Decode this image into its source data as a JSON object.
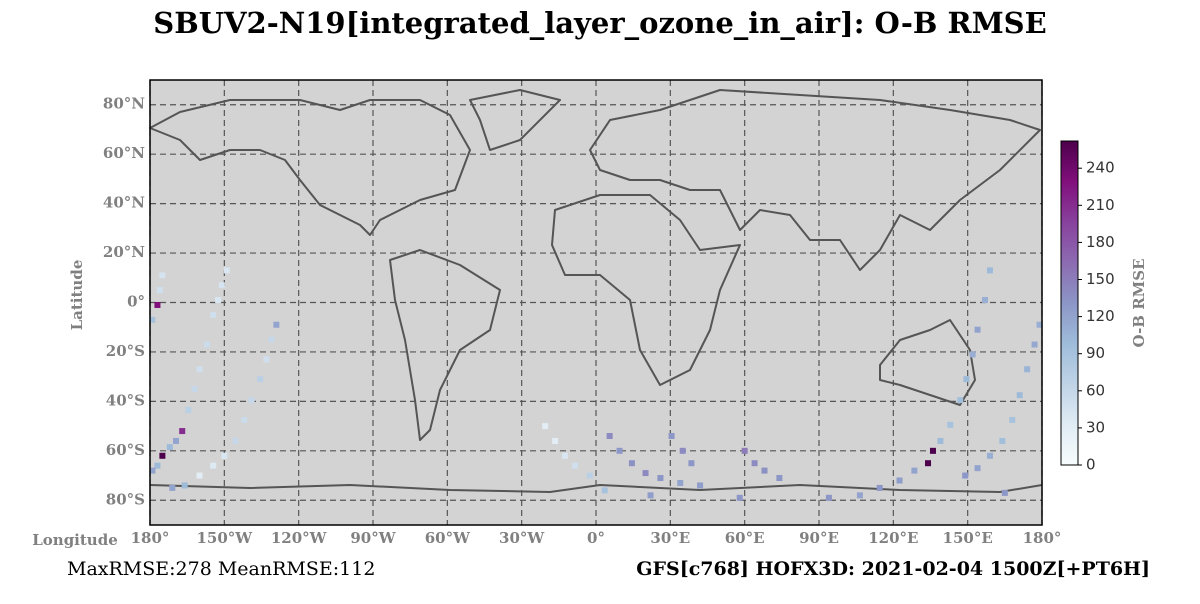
{
  "chart_data": {
    "type": "map",
    "title": "SBUV2-N19[integrated_layer_ozone_in_air]: O-B RMSE",
    "x_label": "Longitude",
    "y_label": "Latitude",
    "colorbar_label": "O-B RMSE",
    "footer_left": "MaxRMSE:278 MeanRMSE:112",
    "footer_right": "GFS[c768] HOFX3D: 2021-02-04 1500Z[+PT6H]",
    "grid": true,
    "colormap": "BuPu",
    "xlim": [
      -180,
      180
    ],
    "ylim": [
      -90,
      90
    ],
    "clim": [
      0,
      262
    ],
    "xticks": [
      {
        "value": -180,
        "label": "180°"
      },
      {
        "value": -150,
        "label": "150°W"
      },
      {
        "value": -120,
        "label": "120°W"
      },
      {
        "value": -90,
        "label": "90°W"
      },
      {
        "value": -60,
        "label": "60°W"
      },
      {
        "value": -30,
        "label": "30°W"
      },
      {
        "value": 0,
        "label": "0°"
      },
      {
        "value": 30,
        "label": "30°E"
      },
      {
        "value": 60,
        "label": "60°E"
      },
      {
        "value": 90,
        "label": "90°E"
      },
      {
        "value": 120,
        "label": "120°E"
      },
      {
        "value": 150,
        "label": "150°E"
      },
      {
        "value": 180,
        "label": "180°"
      }
    ],
    "yticks": [
      {
        "value": 80,
        "label": "80°N"
      },
      {
        "value": 60,
        "label": "60°N"
      },
      {
        "value": 40,
        "label": "40°N"
      },
      {
        "value": 20,
        "label": "20°N"
      },
      {
        "value": 0,
        "label": "0°"
      },
      {
        "value": -20,
        "label": "20°S"
      },
      {
        "value": -40,
        "label": "40°S"
      },
      {
        "value": -60,
        "label": "60°S"
      },
      {
        "value": -80,
        "label": "80°S"
      }
    ],
    "cticks": [
      0,
      30,
      60,
      90,
      120,
      150,
      180,
      210,
      240
    ],
    "x": [
      -149,
      -151,
      -152.5,
      -154.5,
      -157,
      -160,
      -162,
      -164.5,
      -167,
      -169.5,
      -172,
      -175,
      -177,
      -179,
      -175,
      -176,
      -177,
      -179,
      -129,
      -131,
      -133,
      -135.5,
      -139,
      -142,
      -145.5,
      -150,
      -154.5,
      -160,
      -166,
      -20.5,
      -16.5,
      -12.5,
      -8.5,
      -2.5,
      3.5,
      5.5,
      9.5,
      14.5,
      20,
      26,
      34,
      42,
      30.5,
      35,
      38.5,
      60,
      64,
      68,
      74,
      159,
      157,
      154,
      152,
      149.5,
      147,
      143,
      139,
      136,
      134,
      128.5,
      122.5,
      114.5,
      106.5,
      179,
      177,
      174,
      171,
      168,
      164,
      159,
      154,
      149,
      -171,
      22,
      58,
      94,
      165
    ],
    "y": [
      13,
      7,
      1,
      -5,
      -17,
      -27,
      -35,
      -43.5,
      -52,
      -56,
      -58.5,
      -62,
      -66,
      -68,
      11,
      5,
      -1,
      -7,
      -9,
      -15,
      -23,
      -31,
      -39.5,
      -47.5,
      -56,
      -62,
      -66,
      -70,
      -74,
      -50,
      -56,
      -62,
      -66,
      -70,
      -76,
      -54,
      -60,
      -65,
      -69,
      -71,
      -73,
      -74,
      -54,
      -60,
      -65,
      -60,
      -65,
      -68,
      -71,
      13,
      1,
      -11,
      -21,
      -31,
      -39.5,
      -49.5,
      -56,
      -60,
      -65,
      -68,
      -72,
      -75,
      -78,
      -9,
      -17,
      -27,
      -37.5,
      -47.5,
      -56,
      -62,
      -67,
      -70,
      -75,
      -78,
      -79,
      -79,
      -77
    ],
    "values": [
      40,
      45,
      40,
      50,
      55,
      50,
      60,
      70,
      210,
      120,
      100,
      262,
      100,
      120,
      45,
      50,
      230,
      90,
      120,
      60,
      50,
      70,
      60,
      55,
      60,
      40,
      35,
      30,
      100,
      30,
      30,
      40,
      50,
      70,
      90,
      140,
      130,
      135,
      140,
      130,
      120,
      125,
      130,
      140,
      130,
      150,
      140,
      135,
      130,
      100,
      110,
      120,
      110,
      100,
      95,
      90,
      100,
      262,
      262,
      120,
      125,
      130,
      120,
      110,
      115,
      105,
      100,
      90,
      95,
      110,
      120,
      130,
      120,
      125,
      130,
      130,
      130
    ]
  }
}
